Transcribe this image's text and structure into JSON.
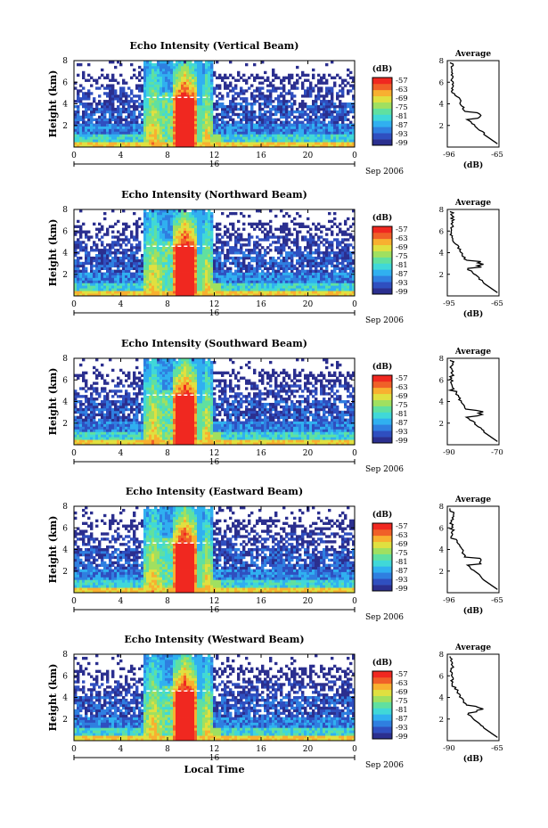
{
  "x_axis_label": "Local Time",
  "day_label": "16",
  "date_label": "Sep 2006",
  "y_axis_label": "Height (km)",
  "colorbar_unit": "(dB)",
  "avg_title": "Average",
  "avg_xlabel": "(dB)",
  "x_ticks": [
    "0",
    "4",
    "8",
    "12",
    "16",
    "20",
    "0"
  ],
  "y_ticks": [
    "2",
    "4",
    "6",
    "8"
  ],
  "colorbar_ticks": [
    "-57",
    "-63",
    "-69",
    "-75",
    "-81",
    "-87",
    "-93",
    "-99"
  ],
  "colors": {
    "scale": [
      "#2b2f8f",
      "#2f4fc0",
      "#2f7fe0",
      "#30b0f0",
      "#40d8d8",
      "#60e0a0",
      "#a0e060",
      "#e0e040",
      "#f8b030",
      "#f06028",
      "#f02820"
    ],
    "noise_floor": "#2d3290"
  },
  "chart_data": [
    {
      "type": "heatmap",
      "title": "Echo Intensity (Vertical Beam)",
      "xlabel": "",
      "ylabel": "Height (km)",
      "xlim": [
        0,
        24
      ],
      "ylim": [
        0,
        8
      ],
      "colorbar_range": [
        -99,
        -57
      ],
      "features": {
        "convective_cores_hours": [
          [
            6.0,
            7.6
          ],
          [
            8.4,
            10.6
          ],
          [
            11.0,
            11.8
          ]
        ],
        "bright_band_km": 4.6
      },
      "profile": {
        "title": "Average",
        "xlabel": "(dB)",
        "xlim": [
          -96,
          -65
        ],
        "xticks": [
          "-96",
          "-65"
        ],
        "yticks": [
          "2",
          "4",
          "6",
          "8"
        ]
      }
    },
    {
      "type": "heatmap",
      "title": "Echo Intensity (Northward Beam)",
      "xlabel": "",
      "ylabel": "Height (km)",
      "xlim": [
        0,
        24
      ],
      "ylim": [
        0,
        8
      ],
      "colorbar_range": [
        -99,
        -57
      ],
      "features": {
        "convective_cores_hours": [
          [
            6.0,
            7.6
          ],
          [
            8.4,
            10.6
          ],
          [
            11.0,
            11.8
          ]
        ],
        "bright_band_km": 4.6
      },
      "profile": {
        "title": "Average",
        "xlabel": "(dB)",
        "xlim": [
          -95,
          -65
        ],
        "xticks": [
          "-95",
          "-65"
        ],
        "yticks": [
          "2",
          "4",
          "6",
          "8"
        ]
      }
    },
    {
      "type": "heatmap",
      "title": "Echo Intensity (Southward Beam)",
      "xlabel": "",
      "ylabel": "Height (km)",
      "xlim": [
        0,
        24
      ],
      "ylim": [
        0,
        8
      ],
      "colorbar_range": [
        -99,
        -57
      ],
      "features": {
        "convective_cores_hours": [
          [
            6.0,
            7.6
          ],
          [
            8.4,
            10.6
          ],
          [
            11.0,
            11.8
          ]
        ],
        "bright_band_km": 4.6
      },
      "profile": {
        "title": "Average",
        "xlabel": "",
        "xlim": [
          -90,
          -70
        ],
        "xticks": [
          "-90",
          "-70"
        ],
        "yticks": [
          "2",
          "4",
          "6",
          "8"
        ]
      }
    },
    {
      "type": "heatmap",
      "title": "Echo Intensity (Eastward Beam)",
      "xlabel": "",
      "ylabel": "Height (km)",
      "xlim": [
        0,
        24
      ],
      "ylim": [
        0,
        8
      ],
      "colorbar_range": [
        -99,
        -57
      ],
      "features": {
        "convective_cores_hours": [
          [
            6.0,
            7.6
          ],
          [
            8.4,
            10.6
          ],
          [
            11.0,
            11.8
          ]
        ],
        "bright_band_km": 4.6
      },
      "profile": {
        "title": "Average",
        "xlabel": "(dB)",
        "xlim": [
          -96,
          -65
        ],
        "xticks": [
          "-96",
          "-65"
        ],
        "yticks": [
          "2",
          "4",
          "6",
          "8"
        ]
      }
    },
    {
      "type": "heatmap",
      "title": "Echo Intensity (Westward Beam)",
      "xlabel": "Local Time",
      "ylabel": "Height (km)",
      "xlim": [
        0,
        24
      ],
      "ylim": [
        0,
        8
      ],
      "colorbar_range": [
        -99,
        -57
      ],
      "features": {
        "convective_cores_hours": [
          [
            6.0,
            7.6
          ],
          [
            8.4,
            10.6
          ],
          [
            11.0,
            11.8
          ]
        ],
        "bright_band_km": 4.6
      },
      "profile": {
        "title": "Average",
        "xlabel": "(dB)",
        "xlim": [
          -90,
          -65
        ],
        "xticks": [
          "-90",
          "-65"
        ],
        "yticks": [
          "2",
          "4",
          "6",
          "8"
        ]
      }
    }
  ]
}
